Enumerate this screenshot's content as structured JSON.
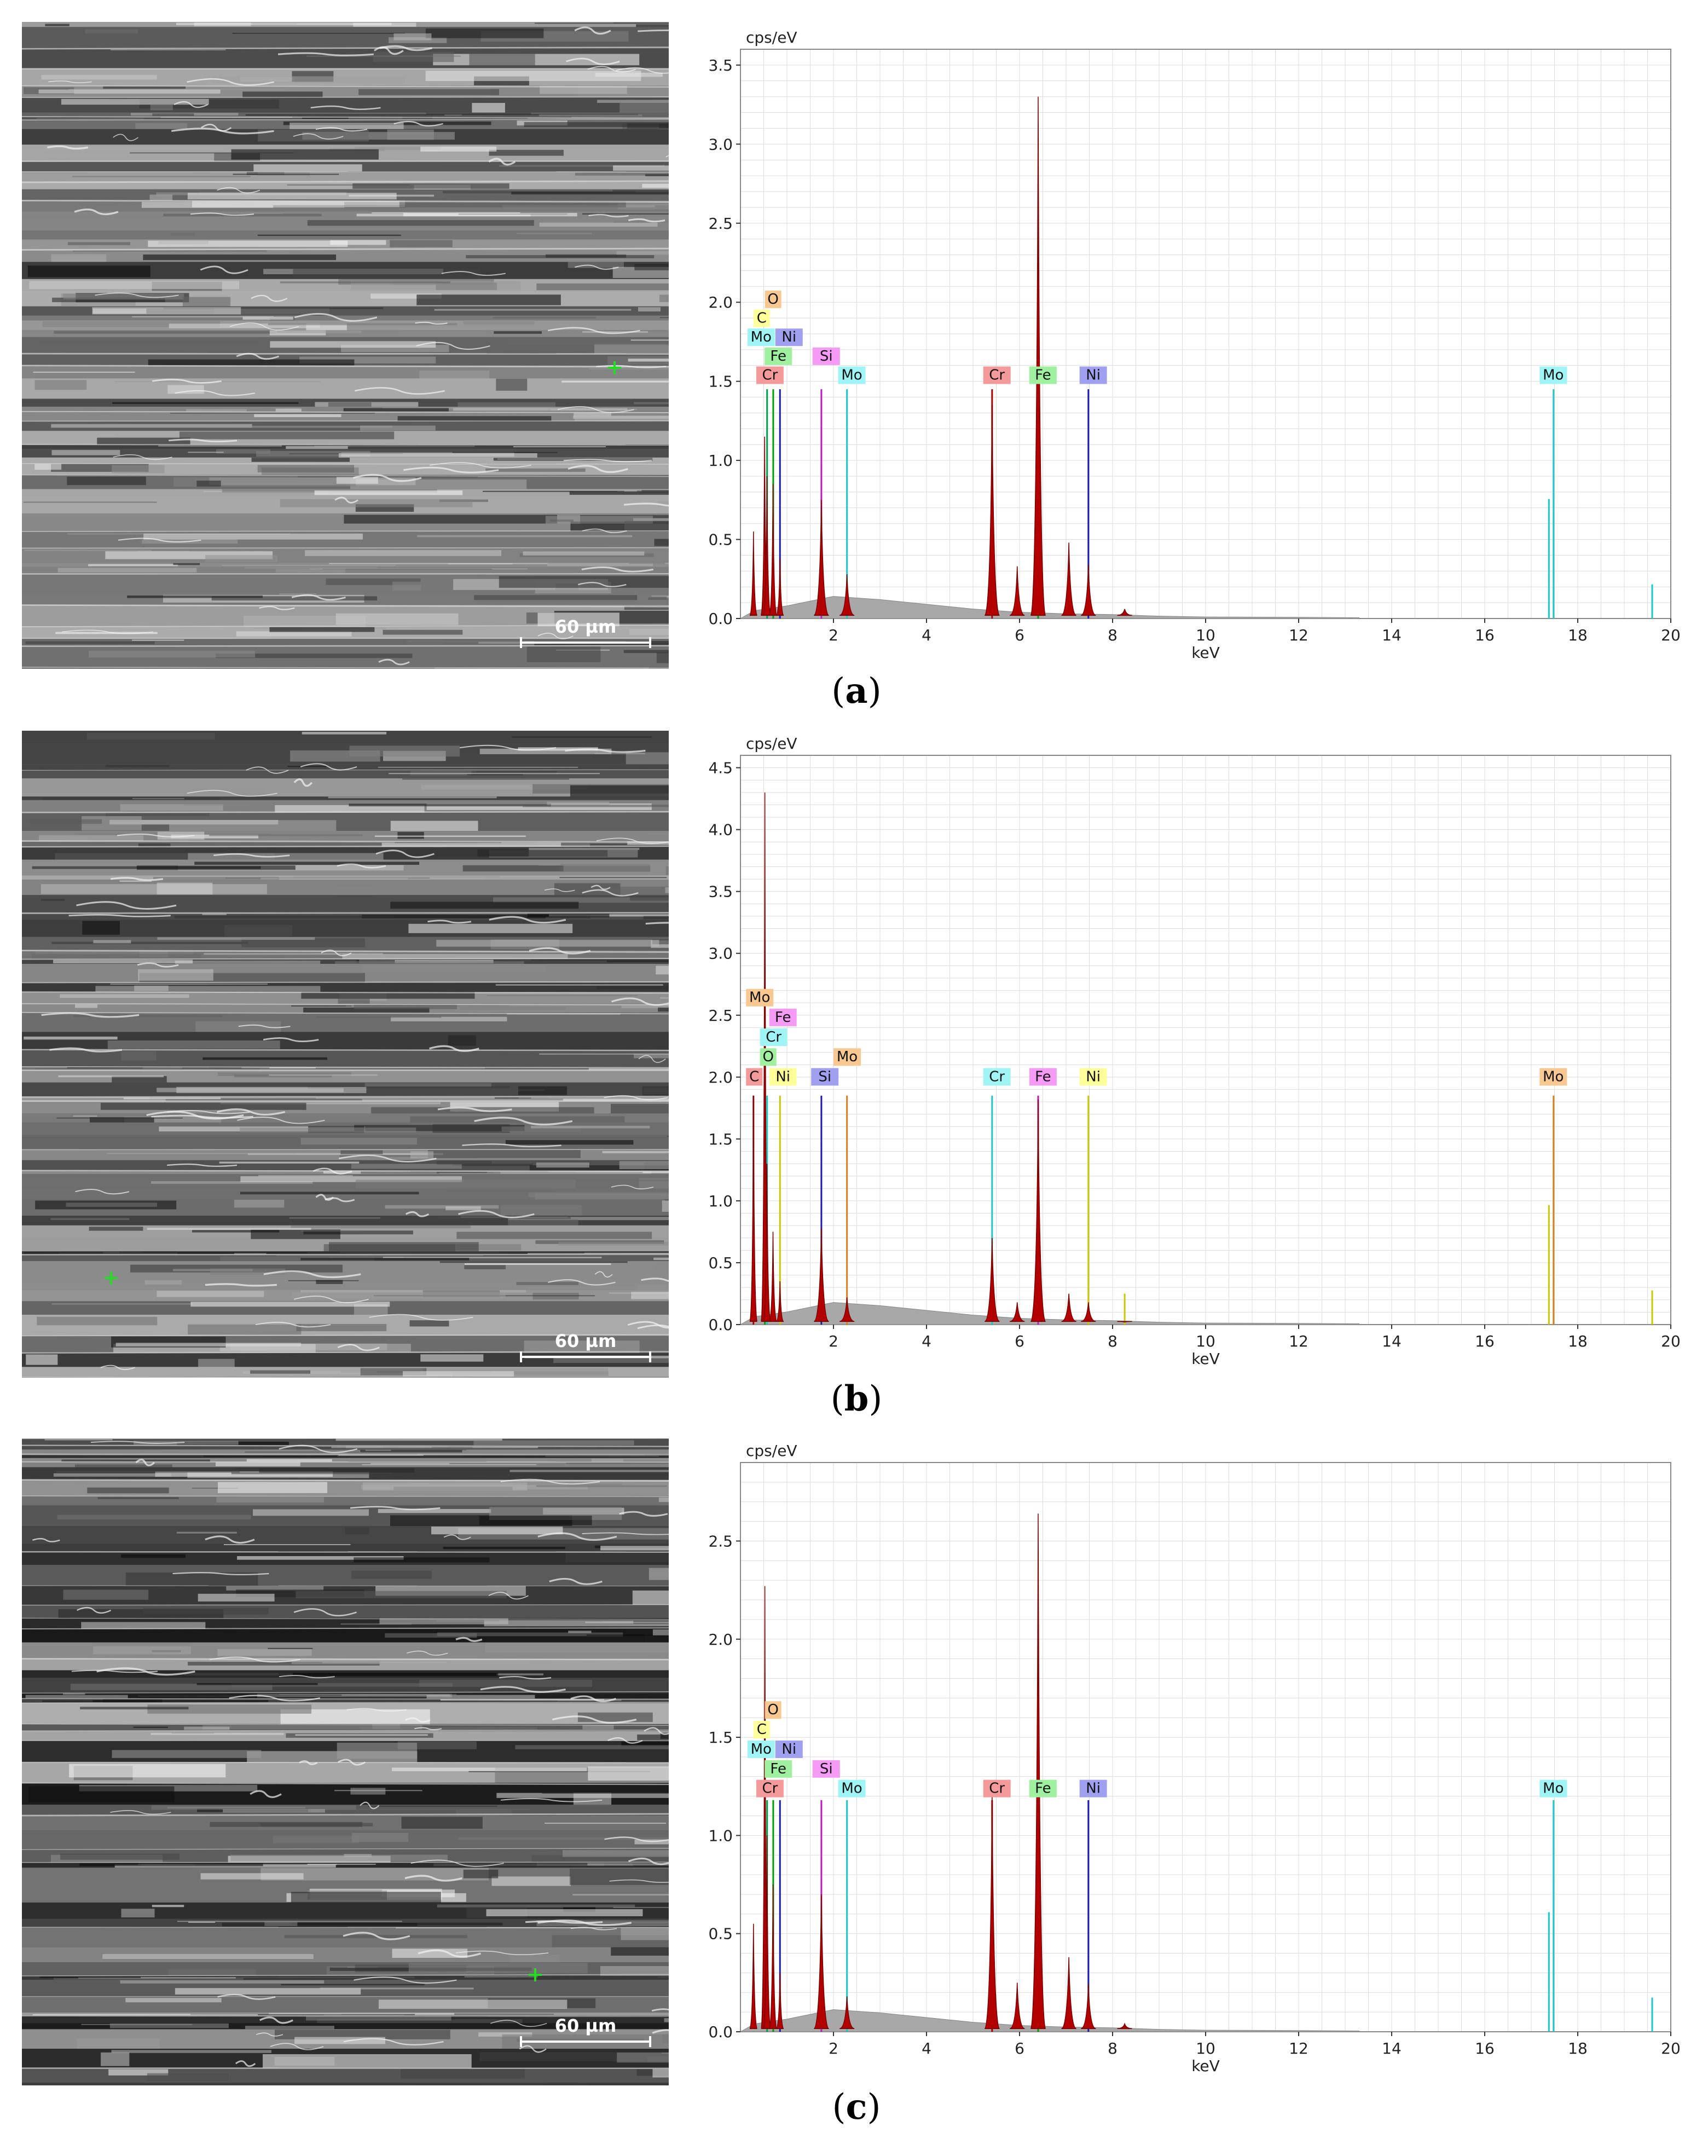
{
  "scale_bar_label": "60 µm",
  "axis_unit_y": "cps/eV",
  "axis_unit_x": "keV",
  "panels": [
    {
      "label": "(a)",
      "label_letter": "a",
      "chart_data": {
        "type": "line",
        "title": "",
        "xlabel": "keV",
        "ylabel": "cps/eV",
        "xlim": [
          0,
          20
        ],
        "ylim": [
          0,
          3.6
        ],
        "yticks": [
          0.0,
          0.5,
          1.0,
          1.5,
          2.0,
          2.5,
          3.0,
          3.5
        ],
        "xticks": [
          2,
          4,
          6,
          8,
          10,
          12,
          14,
          16,
          18,
          20
        ],
        "grid": true,
        "peaks": [
          {
            "x": 0.28,
            "y": 0.55
          },
          {
            "x": 0.52,
            "y": 1.15
          },
          {
            "x": 0.57,
            "y": 0.9
          },
          {
            "x": 0.7,
            "y": 0.85
          },
          {
            "x": 0.85,
            "y": 0.38
          },
          {
            "x": 1.74,
            "y": 0.75
          },
          {
            "x": 2.29,
            "y": 0.28
          },
          {
            "x": 5.41,
            "y": 1.35
          },
          {
            "x": 5.95,
            "y": 0.33
          },
          {
            "x": 6.4,
            "y": 3.3
          },
          {
            "x": 7.06,
            "y": 0.48
          },
          {
            "x": 7.48,
            "y": 0.34
          },
          {
            "x": 8.26,
            "y": 0.06
          }
        ],
        "element_lines": [
          {
            "el": "Cr",
            "x": 0.573,
            "y": 1.45,
            "color": "#00a050"
          },
          {
            "el": "Fe",
            "x": 0.705,
            "y": 1.45,
            "color": "#00a000"
          },
          {
            "el": "Ni",
            "x": 0.85,
            "y": 1.45,
            "color": "#1a1ab4"
          },
          {
            "el": "Si",
            "x": 1.74,
            "y": 1.45,
            "color": "#c01ac0"
          },
          {
            "el": "Mo",
            "x": 2.29,
            "y": 1.45,
            "color": "#1ac8c8"
          },
          {
            "el": "Cr",
            "x": 5.41,
            "y": 1.45,
            "color": "#b00000"
          },
          {
            "el": "Fe",
            "x": 6.4,
            "y": 1.45,
            "color": "#00a000"
          },
          {
            "el": "Ni",
            "x": 7.48,
            "y": 1.45,
            "color": "#1a1ab4"
          },
          {
            "el": "Mo",
            "x": 17.48,
            "y": 1.45,
            "color": "#1ac8c8"
          }
        ],
        "labels": [
          {
            "text": "O",
            "x": 0.525,
            "y": 1.97,
            "bg": "#f8c890"
          },
          {
            "text": "C",
            "x": 0.28,
            "y": 1.85,
            "bg": "#ffff99"
          },
          {
            "text": "Mo",
            "x": 0.15,
            "y": 1.73,
            "bg": "#9ff5f5"
          },
          {
            "text": "Ni",
            "x": 0.75,
            "y": 1.73,
            "bg": "#a0a0f0"
          },
          {
            "text": "Fe",
            "x": 0.52,
            "y": 1.61,
            "bg": "#9ff09f"
          },
          {
            "text": "Cr",
            "x": 0.34,
            "y": 1.49,
            "bg": "#f59a9a"
          },
          {
            "text": "Si",
            "x": 1.55,
            "y": 1.61,
            "bg": "#f59af5"
          },
          {
            "text": "Mo",
            "x": 2.1,
            "y": 1.49,
            "bg": "#9ff5f5"
          },
          {
            "text": "Cr",
            "x": 5.22,
            "y": 1.49,
            "bg": "#f59a9a"
          },
          {
            "text": "Fe",
            "x": 6.21,
            "y": 1.49,
            "bg": "#9ff09f"
          },
          {
            "text": "Ni",
            "x": 7.29,
            "y": 1.49,
            "bg": "#a0a0f0"
          },
          {
            "text": "Mo",
            "x": 17.18,
            "y": 1.49,
            "bg": "#9ff5f5"
          }
        ]
      }
    },
    {
      "label": "(b)",
      "label_letter": "b",
      "chart_data": {
        "type": "line",
        "title": "",
        "xlabel": "keV",
        "ylabel": "cps/eV",
        "xlim": [
          0,
          20
        ],
        "ylim": [
          0,
          4.6
        ],
        "yticks": [
          0.0,
          0.5,
          1.0,
          1.5,
          2.0,
          2.5,
          3.0,
          3.5,
          4.0,
          4.5
        ],
        "xticks": [
          2,
          4,
          6,
          8,
          10,
          12,
          14,
          16,
          18,
          20
        ],
        "grid": true,
        "peaks": [
          {
            "x": 0.28,
            "y": 1.85
          },
          {
            "x": 0.525,
            "y": 4.3
          },
          {
            "x": 0.57,
            "y": 1.3
          },
          {
            "x": 0.7,
            "y": 0.75
          },
          {
            "x": 0.85,
            "y": 0.35
          },
          {
            "x": 1.74,
            "y": 0.78
          },
          {
            "x": 2.29,
            "y": 0.22
          },
          {
            "x": 5.41,
            "y": 0.7
          },
          {
            "x": 5.95,
            "y": 0.18
          },
          {
            "x": 6.4,
            "y": 1.82
          },
          {
            "x": 7.06,
            "y": 0.25
          },
          {
            "x": 7.48,
            "y": 0.18
          },
          {
            "x": 8.26,
            "y": 0.02
          }
        ],
        "element_lines": [
          {
            "el": "C",
            "x": 0.28,
            "y": 1.85,
            "color": "#b00000"
          },
          {
            "el": "O",
            "x": 0.525,
            "y": 1.85,
            "color": "#00a000"
          },
          {
            "el": "Cr",
            "x": 0.573,
            "y": 1.85,
            "color": "#1ac8c8"
          },
          {
            "el": "Ni",
            "x": 0.85,
            "y": 1.85,
            "color": "#c8c800"
          },
          {
            "el": "Si",
            "x": 1.74,
            "y": 1.85,
            "color": "#1a1ab4"
          },
          {
            "el": "Mo",
            "x": 2.29,
            "y": 1.85,
            "color": "#d88020"
          },
          {
            "el": "Cr",
            "x": 5.41,
            "y": 1.85,
            "color": "#1ac8c8"
          },
          {
            "el": "Fe",
            "x": 6.4,
            "y": 1.85,
            "color": "#c01ac0"
          },
          {
            "el": "Ni",
            "x": 7.48,
            "y": 1.85,
            "color": "#c8c800"
          },
          {
            "el": "Mo",
            "x": 17.48,
            "y": 1.85,
            "color": "#d88020"
          },
          {
            "el": "Ni",
            "x": 8.26,
            "y": 0.25,
            "color": "#c8c800"
          }
        ],
        "labels": [
          {
            "text": "Mo",
            "x": 0.12,
            "y": 2.58,
            "bg": "#f8c890"
          },
          {
            "text": "Fe",
            "x": 0.62,
            "y": 2.42,
            "bg": "#f59af5"
          },
          {
            "text": "Cr",
            "x": 0.42,
            "y": 2.26,
            "bg": "#9ff5f5"
          },
          {
            "text": "O",
            "x": 0.42,
            "y": 2.1,
            "bg": "#9ff09f"
          },
          {
            "text": "C",
            "x": 0.12,
            "y": 1.94,
            "bg": "#f59a9a"
          },
          {
            "text": "Ni",
            "x": 0.62,
            "y": 1.94,
            "bg": "#ffff99"
          },
          {
            "text": "Si",
            "x": 1.52,
            "y": 1.94,
            "bg": "#a0a0f0"
          },
          {
            "text": "Mo",
            "x": 2.0,
            "y": 2.1,
            "bg": "#f8c890"
          },
          {
            "text": "Cr",
            "x": 5.22,
            "y": 1.94,
            "bg": "#9ff5f5"
          },
          {
            "text": "Fe",
            "x": 6.21,
            "y": 1.94,
            "bg": "#f59af5"
          },
          {
            "text": "Ni",
            "x": 7.29,
            "y": 1.94,
            "bg": "#ffff99"
          },
          {
            "text": "Mo",
            "x": 17.18,
            "y": 1.94,
            "bg": "#f8c890"
          }
        ]
      }
    },
    {
      "label": "(c)",
      "label_letter": "c",
      "chart_data": {
        "type": "line",
        "title": "",
        "xlabel": "keV",
        "ylabel": "cps/eV",
        "xlim": [
          0,
          20
        ],
        "ylim": [
          0,
          2.9
        ],
        "yticks": [
          0.0,
          0.5,
          1.0,
          1.5,
          2.0,
          2.5
        ],
        "xticks": [
          2,
          4,
          6,
          8,
          10,
          12,
          14,
          16,
          18,
          20
        ],
        "grid": true,
        "peaks": [
          {
            "x": 0.28,
            "y": 0.55
          },
          {
            "x": 0.525,
            "y": 2.27
          },
          {
            "x": 0.57,
            "y": 1.0
          },
          {
            "x": 0.7,
            "y": 0.75
          },
          {
            "x": 0.85,
            "y": 0.3
          },
          {
            "x": 1.74,
            "y": 0.7
          },
          {
            "x": 2.29,
            "y": 0.18
          },
          {
            "x": 5.41,
            "y": 1.2
          },
          {
            "x": 5.95,
            "y": 0.25
          },
          {
            "x": 6.4,
            "y": 2.64
          },
          {
            "x": 7.06,
            "y": 0.38
          },
          {
            "x": 7.48,
            "y": 0.24
          },
          {
            "x": 8.26,
            "y": 0.04
          }
        ],
        "element_lines": [
          {
            "el": "Cr",
            "x": 0.573,
            "y": 1.18,
            "color": "#00a050"
          },
          {
            "el": "Fe",
            "x": 0.705,
            "y": 1.18,
            "color": "#00a000"
          },
          {
            "el": "Ni",
            "x": 0.85,
            "y": 1.18,
            "color": "#1a1ab4"
          },
          {
            "el": "Si",
            "x": 1.74,
            "y": 1.18,
            "color": "#c01ac0"
          },
          {
            "el": "Mo",
            "x": 2.29,
            "y": 1.18,
            "color": "#1ac8c8"
          },
          {
            "el": "Cr",
            "x": 5.41,
            "y": 1.18,
            "color": "#b00000"
          },
          {
            "el": "Fe",
            "x": 6.4,
            "y": 1.18,
            "color": "#00a000"
          },
          {
            "el": "Ni",
            "x": 7.48,
            "y": 1.18,
            "color": "#1a1ab4"
          },
          {
            "el": "Mo",
            "x": 17.48,
            "y": 1.18,
            "color": "#1ac8c8"
          }
        ],
        "labels": [
          {
            "text": "O",
            "x": 0.525,
            "y": 1.6,
            "bg": "#f8c890"
          },
          {
            "text": "C",
            "x": 0.28,
            "y": 1.5,
            "bg": "#ffff99"
          },
          {
            "text": "Mo",
            "x": 0.15,
            "y": 1.4,
            "bg": "#9ff5f5"
          },
          {
            "text": "Ni",
            "x": 0.75,
            "y": 1.4,
            "bg": "#a0a0f0"
          },
          {
            "text": "Fe",
            "x": 0.52,
            "y": 1.3,
            "bg": "#9ff09f"
          },
          {
            "text": "Cr",
            "x": 0.34,
            "y": 1.2,
            "bg": "#f59a9a"
          },
          {
            "text": "Si",
            "x": 1.55,
            "y": 1.3,
            "bg": "#f59af5"
          },
          {
            "text": "Mo",
            "x": 2.1,
            "y": 1.2,
            "bg": "#9ff5f5"
          },
          {
            "text": "Cr",
            "x": 5.22,
            "y": 1.2,
            "bg": "#f59a9a"
          },
          {
            "text": "Fe",
            "x": 6.21,
            "y": 1.2,
            "bg": "#9ff09f"
          },
          {
            "text": "Ni",
            "x": 7.29,
            "y": 1.2,
            "bg": "#a0a0f0"
          },
          {
            "text": "Mo",
            "x": 17.18,
            "y": 1.2,
            "bg": "#9ff5f5"
          }
        ]
      }
    }
  ]
}
